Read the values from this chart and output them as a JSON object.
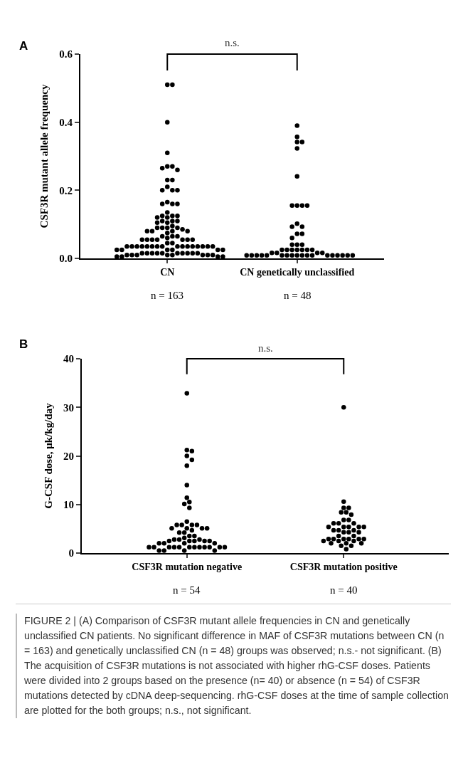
{
  "chart_data": [
    {
      "type": "scatter",
      "ylabel": "CSF3R mutant allele frequency",
      "categories": [
        "CN",
        "CN genetically unclassified"
      ],
      "ylim": [
        0,
        0.6
      ],
      "yticks": [
        {
          "value": 0,
          "label": "0.0"
        },
        {
          "value": 0.2,
          "label": "0.2"
        },
        {
          "value": 0.4,
          "label": "0.4"
        },
        {
          "value": 0.6,
          "label": "0.6"
        }
      ],
      "marker": "circle",
      "series": [
        {
          "color": "#000000",
          "x": [
            "CN",
            "CN",
            "CN",
            "CN",
            "CN",
            "CN",
            "CN",
            "CN",
            "CN",
            "CN",
            "CN",
            "CN",
            "CN",
            "CN",
            "CN",
            "CN",
            "CN",
            "CN",
            "CN",
            "CN",
            "CN",
            "CN",
            "CN",
            "CN",
            "CN",
            "CN",
            "CN",
            "CN",
            "CN",
            "CN",
            "CN",
            "CN",
            "CN",
            "CN",
            "CN",
            "CN",
            "CN",
            "CN",
            "CN",
            "CN",
            "CN",
            "CN",
            "CN",
            "CN",
            "CN",
            "CN",
            "CN",
            "CN",
            "CN",
            "CN",
            "CN",
            "CN",
            "CN",
            "CN",
            "CN",
            "CN",
            "CN",
            "CN",
            "CN",
            "CN",
            "CN",
            "CN",
            "CN",
            "CN",
            "CN",
            "CN",
            "CN",
            "CN",
            "CN",
            "CN",
            "CN",
            "CN",
            "CN",
            "CN",
            "CN",
            "CN",
            "CN",
            "CN",
            "CN",
            "CN",
            "CN",
            "CN",
            "CN",
            "CN",
            "CN",
            "CN",
            "CN",
            "CN",
            "CN",
            "CN",
            "CN",
            "CN",
            "CN",
            "CN",
            "CN",
            "CN",
            "CN",
            "CN genetically unclassified",
            "CN genetically unclassified",
            "CN genetically unclassified",
            "CN genetically unclassified",
            "CN genetically unclassified",
            "CN genetically unclassified",
            "CN genetically unclassified",
            "CN genetically unclassified",
            "CN genetically unclassified",
            "CN genetically unclassified",
            "CN genetically unclassified",
            "CN genetically unclassified",
            "CN genetically unclassified",
            "CN genetically unclassified",
            "CN genetically unclassified",
            "CN genetically unclassified",
            "CN genetically unclassified",
            "CN genetically unclassified",
            "CN genetically unclassified",
            "CN genetically unclassified",
            "CN genetically unclassified",
            "CN genetically unclassified",
            "CN genetically unclassified",
            "CN genetically unclassified",
            "CN genetically unclassified",
            "CN genetically unclassified",
            "CN genetically unclassified",
            "CN genetically unclassified",
            "CN genetically unclassified",
            "CN genetically unclassified",
            "CN genetically unclassified",
            "CN genetically unclassified",
            "CN genetically unclassified",
            "CN genetically unclassified",
            "CN genetically unclassified",
            "CN genetically unclassified",
            "CN genetically unclassified",
            "CN genetically unclassified",
            "CN genetically unclassified",
            "CN genetically unclassified",
            "CN genetically unclassified",
            "CN genetically unclassified",
            "CN genetically unclassified",
            "CN genetically unclassified",
            "CN genetically unclassified",
            "CN genetically unclassified",
            "CN genetically unclassified",
            "CN genetically unclassified"
          ],
          "values": [
            0.51,
            0.51,
            0.4,
            0.31,
            0.27,
            0.265,
            0.26,
            0.27,
            0.23,
            0.23,
            0.21,
            0.2,
            0.2,
            0.2,
            0.16,
            0.16,
            0.16,
            0.165,
            0.135,
            0.125,
            0.125,
            0.12,
            0.125,
            0.12,
            0.11,
            0.11,
            0.11,
            0.105,
            0.105,
            0.09,
            0.09,
            0.09,
            0.09,
            0.095,
            0.085,
            0.08,
            0.08,
            0.08,
            0.075,
            0.08,
            0.065,
            0.065,
            0.06,
            0.065,
            0.055,
            0.055,
            0.055,
            0.055,
            0.055,
            0.055,
            0.055,
            0.045,
            0.045,
            0.035,
            0.035,
            0.035,
            0.035,
            0.035,
            0.035,
            0.035,
            0.035,
            0.035,
            0.035,
            0.035,
            0.035,
            0.035,
            0.035,
            0.035,
            0.035,
            0.025,
            0.025,
            0.025,
            0.025,
            0.025,
            0.025,
            0.015,
            0.015,
            0.015,
            0.015,
            0.015,
            0.015,
            0.015,
            0.015,
            0.015,
            0.015,
            0.01,
            0.01,
            0.01,
            0.01,
            0.01,
            0.01,
            0.01,
            0.01,
            0.005,
            0.005,
            0.005,
            0.005,
            0.39,
            0.357,
            0.342,
            0.342,
            0.323,
            0.241,
            0.155,
            0.155,
            0.155,
            0.155,
            0.102,
            0.093,
            0.093,
            0.072,
            0.072,
            0.06,
            0.04,
            0.04,
            0.04,
            0.025,
            0.025,
            0.025,
            0.025,
            0.025,
            0.025,
            0.025,
            0.016,
            0.016,
            0.016,
            0.016,
            0.009,
            0.009,
            0.009,
            0.009,
            0.009,
            0.009,
            0.009,
            0.009,
            0.009,
            0.009,
            0.009,
            0.009,
            0.009,
            0.009,
            0.009,
            0.009,
            0.009,
            0.009
          ]
        }
      ],
      "annotations": [
        "A",
        "n.s.",
        "n = 163",
        "n = 48"
      ]
    },
    {
      "type": "scatter",
      "ylabel": "G-CSF dose, μk/kg/day",
      "categories": [
        "CSF3R mutation negative",
        "CSF3R mutation positive"
      ],
      "ylim": [
        0,
        40
      ],
      "yticks": [
        0,
        10,
        20,
        30,
        40
      ],
      "marker": "circle",
      "series": [
        {
          "color": "#000000",
          "x": [
            "CSF3R mutation negative",
            "CSF3R mutation negative",
            "CSF3R mutation negative",
            "CSF3R mutation negative",
            "CSF3R mutation negative",
            "CSF3R mutation negative",
            "CSF3R mutation negative",
            "CSF3R mutation negative",
            "CSF3R mutation negative",
            "CSF3R mutation negative",
            "CSF3R mutation negative",
            "CSF3R mutation negative",
            "CSF3R mutation negative",
            "CSF3R mutation negative",
            "CSF3R mutation negative",
            "CSF3R mutation negative",
            "CSF3R mutation negative",
            "CSF3R mutation negative",
            "CSF3R mutation negative",
            "CSF3R mutation negative",
            "CSF3R mutation negative",
            "CSF3R mutation negative",
            "CSF3R mutation negative",
            "CSF3R mutation negative",
            "CSF3R mutation negative",
            "CSF3R mutation negative",
            "CSF3R mutation negative",
            "CSF3R mutation negative",
            "CSF3R mutation negative",
            "CSF3R mutation negative",
            "CSF3R mutation negative",
            "CSF3R mutation negative",
            "CSF3R mutation negative",
            "CSF3R mutation negative",
            "CSF3R mutation negative",
            "CSF3R mutation negative",
            "CSF3R mutation negative",
            "CSF3R mutation negative",
            "CSF3R mutation negative",
            "CSF3R mutation negative",
            "CSF3R mutation negative",
            "CSF3R mutation negative",
            "CSF3R mutation negative",
            "CSF3R mutation negative",
            "CSF3R mutation negative",
            "CSF3R mutation negative",
            "CSF3R mutation negative",
            "CSF3R mutation negative",
            "CSF3R mutation negative",
            "CSF3R mutation negative",
            "CSF3R mutation negative",
            "CSF3R mutation negative",
            "CSF3R mutation negative",
            "CSF3R mutation negative",
            "CSF3R mutation positive",
            "CSF3R mutation positive",
            "CSF3R mutation positive",
            "CSF3R mutation positive",
            "CSF3R mutation positive",
            "CSF3R mutation positive",
            "CSF3R mutation positive",
            "CSF3R mutation positive",
            "CSF3R mutation positive",
            "CSF3R mutation positive",
            "CSF3R mutation positive",
            "CSF3R mutation positive",
            "CSF3R mutation positive",
            "CSF3R mutation positive",
            "CSF3R mutation positive",
            "CSF3R mutation positive",
            "CSF3R mutation positive",
            "CSF3R mutation positive",
            "CSF3R mutation positive",
            "CSF3R mutation positive",
            "CSF3R mutation positive",
            "CSF3R mutation positive",
            "CSF3R mutation positive",
            "CSF3R mutation positive",
            "CSF3R mutation positive",
            "CSF3R mutation positive",
            "CSF3R mutation positive",
            "CSF3R mutation positive",
            "CSF3R mutation positive",
            "CSF3R mutation positive",
            "CSF3R mutation positive",
            "CSF3R mutation positive",
            "CSF3R mutation positive",
            "CSF3R mutation positive",
            "CSF3R mutation positive",
            "CSF3R mutation positive",
            "CSF3R mutation positive",
            "CSF3R mutation positive",
            "CSF3R mutation positive",
            "CSF3R mutation positive"
          ],
          "values": [
            32.9,
            21.2,
            21.0,
            20.0,
            19.2,
            18.0,
            14.0,
            11.4,
            10.5,
            10.1,
            9.3,
            6.5,
            5.8,
            5.8,
            5.8,
            5.8,
            5.1,
            5.1,
            5.1,
            5.1,
            4.7,
            4.2,
            4.2,
            3.5,
            3.5,
            3.1,
            2.8,
            2.8,
            2.8,
            2.5,
            2.5,
            2.5,
            2.5,
            2.5,
            2.0,
            2.0,
            2.0,
            2.0,
            1.2,
            1.2,
            1.2,
            1.2,
            1.2,
            1.2,
            1.2,
            1.2,
            1.2,
            1.2,
            1.2,
            1.2,
            0.5,
            0.5,
            0.5,
            0.5,
            30.0,
            10.6,
            9.3,
            9.3,
            8.4,
            8.4,
            7.9,
            6.8,
            6.8,
            6.1,
            6.1,
            6.1,
            5.4,
            5.4,
            5.4,
            5.4,
            5.4,
            4.7,
            4.7,
            4.7,
            4.3,
            4.3,
            4.3,
            3.5,
            3.5,
            2.9,
            2.9,
            2.9,
            2.9,
            2.9,
            2.9,
            2.5,
            2.5,
            2.5,
            2.0,
            2.0,
            2.0,
            1.5,
            1.5,
            0.8
          ]
        }
      ],
      "annotations": [
        "B",
        "n.s.",
        "n = 54",
        "n = 40",
        "FIGURE 2 | (A) Comparison of CSF3R mutant allele frequencies in CN and genetically unclassified CN patients. No significant difference in MAF of CSF3R mutations between CN (n = 163) and genetically unclassified CN (n = 48) groups was observed; n.s.- not significant. (B) The acquisition of CSF3R mutations is not associated with higher rhG-CSF doses. Patients were divided into 2 groups based on the presence (n= 40) or absence (n = 54) of CSF3R mutations detected by cDNA deep-sequencing. rhG-CSF doses at the time of sample collection are plotted for the both groups; n.s., not significant."
      ]
    }
  ]
}
